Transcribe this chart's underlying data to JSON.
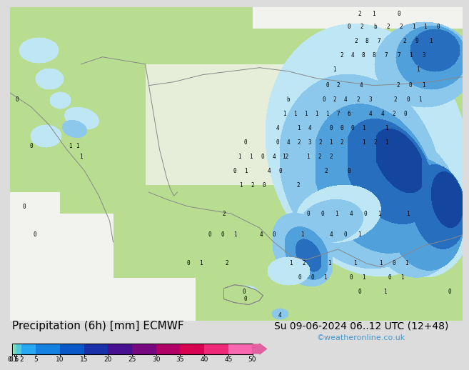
{
  "title_label": "Precipitation (6h) [mm] ECMWF",
  "date_label": "Su 09-06-2024 06..12 UTC (12+48)",
  "credit_label": "©weatheronline.co.uk",
  "colorbar_values": [
    0.1,
    0.5,
    1,
    2,
    5,
    10,
    15,
    20,
    25,
    30,
    35,
    40,
    45,
    50
  ],
  "colorbar_colors": [
    "#d4f0d4",
    "#a8e8c0",
    "#70d8c0",
    "#50c8e0",
    "#28a8f0",
    "#1480e0",
    "#0858c8",
    "#1830a8",
    "#481090",
    "#780880",
    "#b00068",
    "#d80050",
    "#f02878",
    "#f868b0"
  ],
  "background_color": "#dcdcdc",
  "land_color": "#b8dc90",
  "sea_color": "#d8eef8",
  "greece_sea_color": "#c8e4e8",
  "title_fontsize": 11,
  "date_fontsize": 10,
  "credit_color": "#4499cc",
  "arrow_color": "#e060a0",
  "bar_bg": "#c8c8c8"
}
